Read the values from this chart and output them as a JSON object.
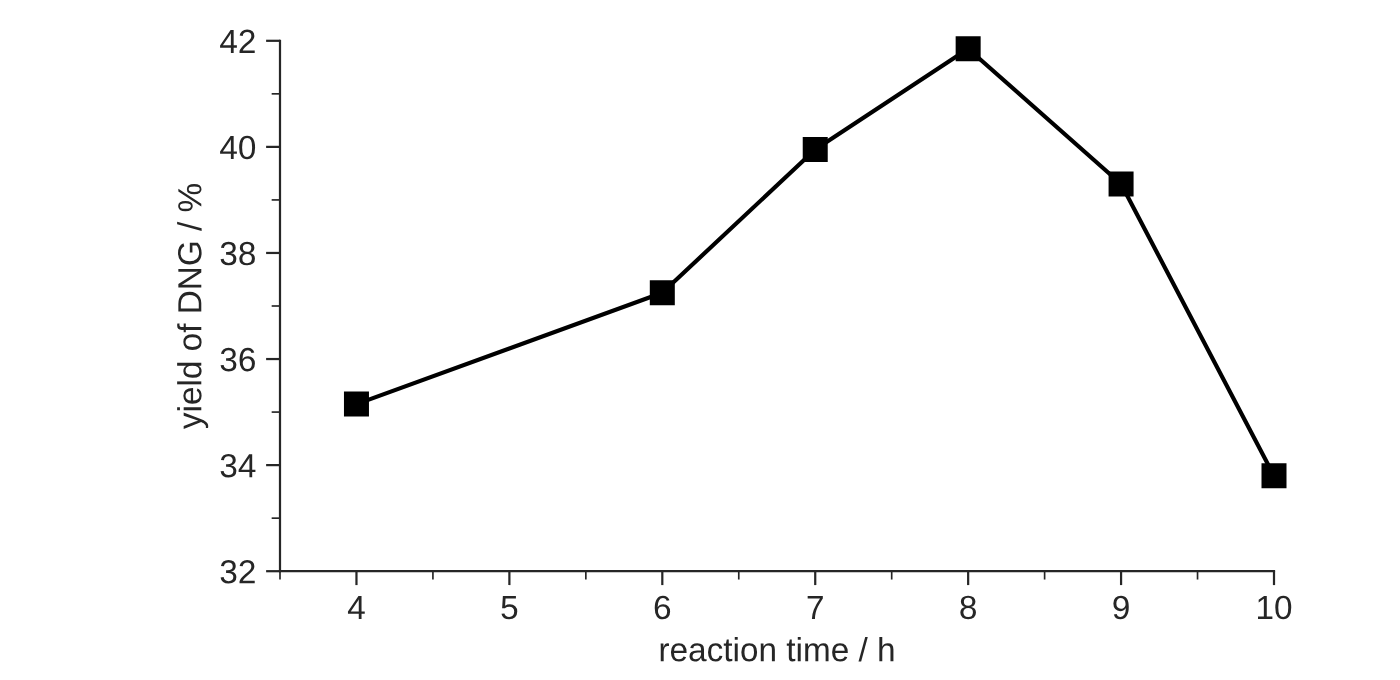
{
  "chart_data": {
    "type": "line",
    "xlabel": "reaction time / h",
    "ylabel": "yield of DNG / %",
    "x": [
      4,
      6,
      7,
      8,
      9,
      10
    ],
    "series": [
      {
        "color": "#000000",
        "values": [
          35.15,
          37.25,
          39.95,
          41.85,
          39.3,
          33.8
        ]
      }
    ],
    "xlim": [
      3.5,
      10
    ],
    "xticks": [
      4,
      5,
      6,
      7,
      8,
      9,
      10
    ],
    "ylim": [
      32,
      42
    ],
    "yticks": [
      32,
      34,
      36,
      38,
      40,
      42
    ],
    "marker": "square",
    "line_style": "solid",
    "grid": false,
    "legend": false
  }
}
